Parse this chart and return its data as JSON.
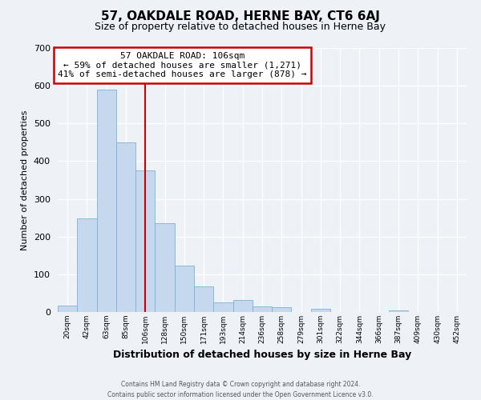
{
  "title": "57, OAKDALE ROAD, HERNE BAY, CT6 6AJ",
  "subtitle": "Size of property relative to detached houses in Herne Bay",
  "xlabel": "Distribution of detached houses by size in Herne Bay",
  "ylabel": "Number of detached properties",
  "bin_labels": [
    "20sqm",
    "42sqm",
    "63sqm",
    "85sqm",
    "106sqm",
    "128sqm",
    "150sqm",
    "171sqm",
    "193sqm",
    "214sqm",
    "236sqm",
    "258sqm",
    "279sqm",
    "301sqm",
    "322sqm",
    "344sqm",
    "366sqm",
    "387sqm",
    "409sqm",
    "430sqm",
    "452sqm"
  ],
  "bin_values": [
    18,
    248,
    590,
    450,
    375,
    235,
    122,
    68,
    25,
    31,
    14,
    12,
    1,
    9,
    0,
    0,
    0,
    5,
    0,
    0,
    1
  ],
  "bar_color": "#c5d8ed",
  "bar_edge_color": "#7ab4d4",
  "vline_x_index": 4,
  "vline_color": "#cc0000",
  "annotation_title": "57 OAKDALE ROAD: 106sqm",
  "annotation_line1": "← 59% of detached houses are smaller (1,271)",
  "annotation_line2": "41% of semi-detached houses are larger (878) →",
  "annotation_box_color": "#ffffff",
  "annotation_box_edge_color": "#cc0000",
  "ylim": [
    0,
    700
  ],
  "yticks": [
    0,
    100,
    200,
    300,
    400,
    500,
    600,
    700
  ],
  "background_color": "#eef2f7",
  "footer_line1": "Contains HM Land Registry data © Crown copyright and database right 2024.",
  "footer_line2": "Contains public sector information licensed under the Open Government Licence v3.0."
}
